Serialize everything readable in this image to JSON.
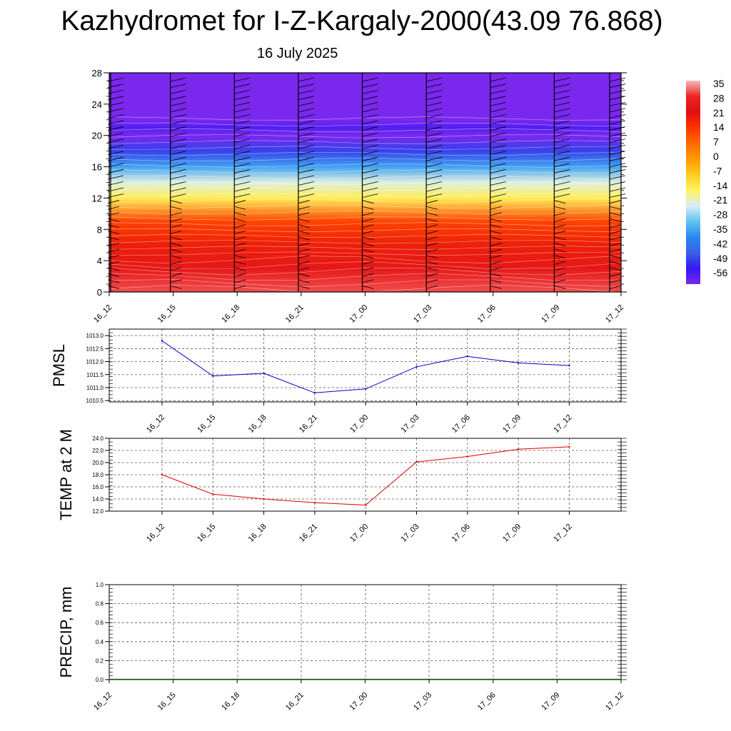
{
  "title": "Kazhydromet for I-Z-Kargaly-2000(43.09 76.868)",
  "subtitle": "16 July 2025",
  "colors": {
    "pmsl_line": "#0000cc",
    "temp_line": "#dd0000",
    "precip_line": "#006400",
    "grid": "#555555"
  },
  "colorbar": {
    "labels": [
      "35",
      "28",
      "21",
      "14",
      "7",
      "0",
      "-7",
      "-14",
      "-21",
      "-28",
      "-35",
      "-42",
      "-49",
      "-56"
    ],
    "stops": [
      "#f4bcbc",
      "#ee2222",
      "#e01010",
      "#ff3300",
      "#ff6a00",
      "#ff9a00",
      "#ffcc20",
      "#fff460",
      "#d8eef6",
      "#60c4f2",
      "#2888f0",
      "#3a60e4",
      "#3418f2",
      "#7a28ee"
    ]
  },
  "chart_data": [
    {
      "type": "heatmap",
      "ylim": [
        0,
        28
      ],
      "yticks": [
        "0",
        "4",
        "8",
        "12",
        "16",
        "20",
        "24",
        "28"
      ],
      "xticks": [
        "16_12",
        "16_15",
        "16_18",
        "16_21",
        "17_00",
        "17_03",
        "17_06",
        "17_09",
        "17_12"
      ],
      "levels": [
        0,
        3,
        6,
        9,
        12,
        14,
        16,
        18,
        20,
        21,
        22,
        28
      ],
      "values": [
        30,
        24,
        18,
        12,
        -13,
        -20,
        -32,
        -45,
        -56,
        -52,
        -62,
        -66
      ]
    },
    {
      "type": "line",
      "ylabel": "PMSL",
      "x": [
        "16_12",
        "16_15",
        "16_18",
        "16_21",
        "17_00",
        "17_03",
        "17_06",
        "17_09",
        "17_12"
      ],
      "y": [
        1012.8,
        1011.45,
        1011.55,
        1010.8,
        1010.95,
        1011.8,
        1012.2,
        1011.95,
        1011.85
      ],
      "ylim": [
        1010.45,
        1013.25
      ],
      "yticks": [
        "1010.5",
        "1011.0",
        "1011.5",
        "1012.0",
        "1012.5",
        "1013.0"
      ]
    },
    {
      "type": "line",
      "ylabel": "TEMP at 2 M",
      "x": [
        "16_12",
        "16_15",
        "16_18",
        "16_21",
        "17_00",
        "17_03",
        "17_06",
        "17_09",
        "17_12"
      ],
      "y": [
        18.0,
        14.8,
        14.0,
        13.4,
        13.0,
        20.1,
        21.0,
        22.2,
        22.6
      ],
      "ylim": [
        12.0,
        24.0
      ],
      "yticks": [
        "12.0",
        "14.0",
        "16.0",
        "18.0",
        "20.0",
        "22.0",
        "24.0"
      ]
    },
    {
      "type": "line",
      "ylabel": "PRECIP, mm",
      "x": [
        "16_12",
        "16_15",
        "16_18",
        "16_21",
        "17_00",
        "17_03",
        "17_06",
        "17_09",
        "17_12"
      ],
      "y": [
        0,
        0,
        0,
        0,
        0,
        0,
        0,
        0,
        0
      ],
      "ylim": [
        0,
        1.0
      ],
      "yticks": [
        "0.0",
        "0.2",
        "0.4",
        "0.6",
        "0.8",
        "1.0"
      ]
    }
  ]
}
